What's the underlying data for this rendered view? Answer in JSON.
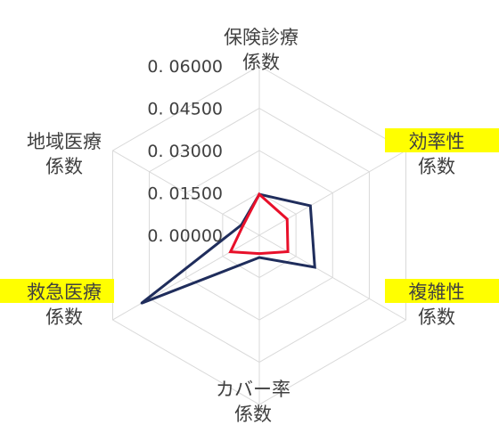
{
  "chart_data": {
    "type": "radar",
    "axes": [
      {
        "lines": [
          "保険診療",
          "係数"
        ],
        "highlighted": false
      },
      {
        "lines": [
          "効率性",
          "係数"
        ],
        "highlighted": true
      },
      {
        "lines": [
          "複雑性",
          "係数"
        ],
        "highlighted": true
      },
      {
        "lines": [
          "カバー率",
          "係数"
        ],
        "highlighted": false
      },
      {
        "lines": [
          "救急医療",
          "係数"
        ],
        "highlighted": true
      },
      {
        "lines": [
          "地域医療",
          "係数"
        ],
        "highlighted": false
      }
    ],
    "ticks": [
      "0.00000",
      "0.01500",
      "0.03000",
      "0.04500",
      "0.06000"
    ],
    "range": [
      0,
      0.06
    ],
    "series": [
      {
        "values": [
          0.0145,
          0.0209,
          0.0227,
          0.0079,
          0.0482,
          0.0073
        ],
        "color": "#1f2d5c"
      },
      {
        "values": [
          0.0145,
          0.0114,
          0.0117,
          0.0065,
          0.0118,
          0.0067
        ],
        "color": "#e8102a"
      }
    ],
    "highlight_color": "#ffff00",
    "grid_color": "#d9d9d9",
    "text_color": "#404040"
  }
}
